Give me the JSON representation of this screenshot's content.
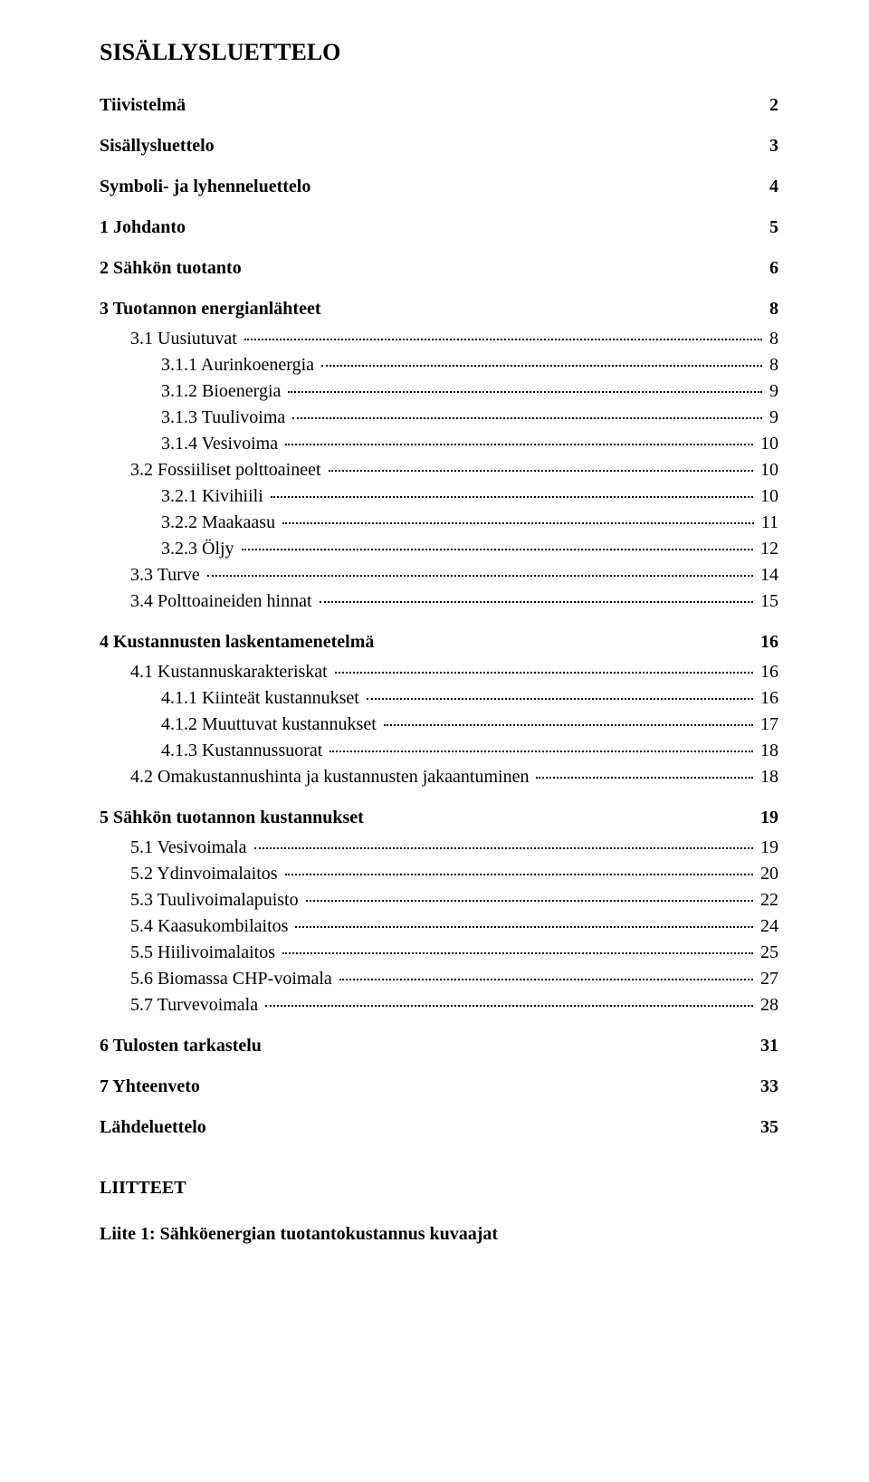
{
  "docTitle": "SISÄLLYSLUETTELO",
  "headings": {
    "tiivistelma": {
      "label": "Tiivistelmä",
      "page": "2"
    },
    "sisallysluettelo": {
      "label": "Sisällysluettelo",
      "page": "3"
    },
    "symboli": {
      "label": "Symboli- ja lyhenneluettelo",
      "page": "4"
    },
    "s1": {
      "label": "1   Johdanto",
      "page": "5"
    },
    "s2": {
      "label": "2   Sähkön tuotanto",
      "page": "6"
    },
    "s3": {
      "label": "3   Tuotannon energianlähteet",
      "page": "8"
    },
    "s4": {
      "label": "4   Kustannusten laskentamenetelmä",
      "page": "16"
    },
    "s5": {
      "label": "5   Sähkön tuotannon kustannukset",
      "page": "19"
    },
    "s6": {
      "label": "6   Tulosten tarkastelu",
      "page": "31"
    },
    "s7": {
      "label": "7   Yhteenveto",
      "page": "33"
    },
    "lahde": {
      "label": "Lähdeluettelo",
      "page": "35"
    }
  },
  "entries": {
    "e3_1": {
      "label": "3.1   Uusiutuvat",
      "page": "8"
    },
    "e3_1_1": {
      "label": "3.1.1   Aurinkoenergia",
      "page": "8"
    },
    "e3_1_2": {
      "label": "3.1.2   Bioenergia",
      "page": "9"
    },
    "e3_1_3": {
      "label": "3.1.3   Tuulivoima",
      "page": "9"
    },
    "e3_1_4": {
      "label": "3.1.4   Vesivoima",
      "page": "10"
    },
    "e3_2": {
      "label": "3.2   Fossiiliset polttoaineet",
      "page": "10"
    },
    "e3_2_1": {
      "label": "3.2.1   Kivihiili",
      "page": "10"
    },
    "e3_2_2": {
      "label": "3.2.2   Maakaasu",
      "page": "11"
    },
    "e3_2_3": {
      "label": "3.2.3   Öljy",
      "page": "12"
    },
    "e3_3": {
      "label": "3.3   Turve",
      "page": "14"
    },
    "e3_4": {
      "label": "3.4   Polttoaineiden hinnat",
      "page": "15"
    },
    "e4_1": {
      "label": "4.1   Kustannuskarakteriskat",
      "page": "16"
    },
    "e4_1_1": {
      "label": "4.1.1   Kiinteät kustannukset",
      "page": "16"
    },
    "e4_1_2": {
      "label": "4.1.2   Muuttuvat kustannukset",
      "page": "17"
    },
    "e4_1_3": {
      "label": "4.1.3   Kustannussuorat",
      "page": "18"
    },
    "e4_2": {
      "label": "4.2   Omakustannushinta ja kustannusten jakaantuminen",
      "page": "18"
    },
    "e5_1": {
      "label": "5.1   Vesivoimala",
      "page": "19"
    },
    "e5_2": {
      "label": "5.2   Ydinvoimalaitos",
      "page": "20"
    },
    "e5_3": {
      "label": "5.3   Tuulivoimalapuisto",
      "page": "22"
    },
    "e5_4": {
      "label": "5.4   Kaasukombilaitos",
      "page": "24"
    },
    "e5_5": {
      "label": "5.5   Hiilivoimalaitos",
      "page": "25"
    },
    "e5_6": {
      "label": "5.6   Biomassa CHP-voimala",
      "page": "27"
    },
    "e5_7": {
      "label": "5.7   Turvevoimala",
      "page": "28"
    }
  },
  "appendix": {
    "title": "LIITTEET",
    "item1": "Liite 1: Sähköenergian tuotantokustannus kuvaajat"
  }
}
